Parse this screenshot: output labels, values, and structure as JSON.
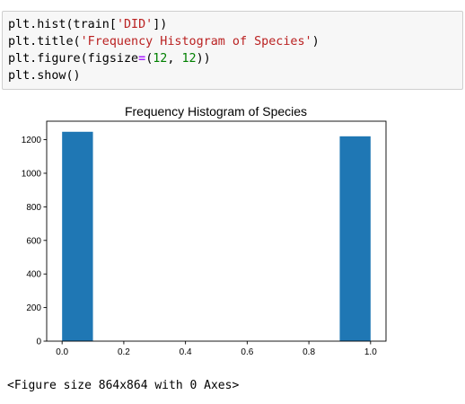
{
  "code_cell": {
    "lines": [
      [
        {
          "t": "plt.hist(train["
        },
        {
          "t": "'DID'",
          "c": "str"
        },
        {
          "t": "])"
        }
      ],
      [
        {
          "t": "plt.title("
        },
        {
          "t": "'Frequency Histogram of Species'",
          "c": "str"
        },
        {
          "t": ")"
        }
      ],
      [
        {
          "t": "plt.figure(figsize"
        },
        {
          "t": "=",
          "c": "op"
        },
        {
          "t": "("
        },
        {
          "t": "12",
          "c": "num"
        },
        {
          "t": ", "
        },
        {
          "t": "12",
          "c": "num"
        },
        {
          "t": "))"
        }
      ],
      [
        {
          "t": "plt.show()"
        }
      ]
    ]
  },
  "chart_data": {
    "type": "bar",
    "title": "Frequency Histogram of Species",
    "xlabel": "",
    "ylabel": "",
    "bins": [
      {
        "x0": 0.0,
        "x1": 0.1,
        "value": 1247
      },
      {
        "x0": 0.1,
        "x1": 0.2,
        "value": 0
      },
      {
        "x0": 0.2,
        "x1": 0.3,
        "value": 0
      },
      {
        "x0": 0.3,
        "x1": 0.4,
        "value": 0
      },
      {
        "x0": 0.4,
        "x1": 0.5,
        "value": 0
      },
      {
        "x0": 0.5,
        "x1": 0.6,
        "value": 0
      },
      {
        "x0": 0.6,
        "x1": 0.7,
        "value": 0
      },
      {
        "x0": 0.7,
        "x1": 0.8,
        "value": 0
      },
      {
        "x0": 0.8,
        "x1": 0.9,
        "value": 0
      },
      {
        "x0": 0.9,
        "x1": 1.0,
        "value": 1220
      }
    ],
    "xlim": [
      -0.05,
      1.05
    ],
    "ylim": [
      0,
      1310
    ],
    "xticks": [
      0.0,
      0.2,
      0.4,
      0.6,
      0.8,
      1.0
    ],
    "xtick_labels": [
      "0.0",
      "0.2",
      "0.4",
      "0.6",
      "0.8",
      "1.0"
    ],
    "yticks": [
      0,
      200,
      400,
      600,
      800,
      1000,
      1200
    ],
    "ytick_labels": [
      "0",
      "200",
      "400",
      "600",
      "800",
      "1000",
      "1200"
    ],
    "bar_color": "#1f77b4",
    "grid": false
  },
  "output": {
    "text": "<Figure size 864x864 with 0 Axes>"
  }
}
